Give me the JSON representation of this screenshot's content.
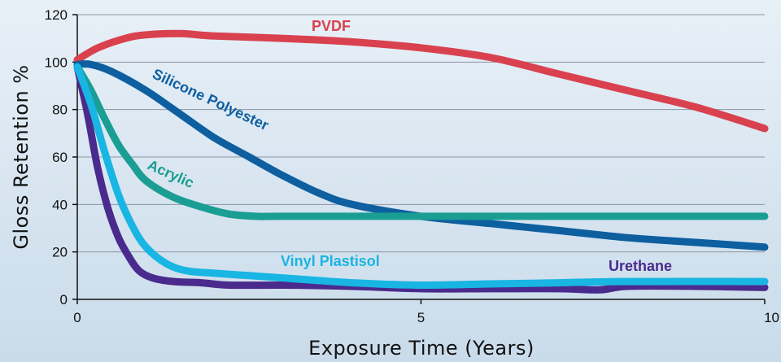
{
  "chart_data": {
    "type": "line",
    "xlabel": "Exposure Time (Years)",
    "ylabel": "Gloss Retention %",
    "xlim": [
      0,
      10
    ],
    "ylim": [
      0,
      120
    ],
    "xticks": [
      0,
      5,
      10
    ],
    "yticks": [
      0,
      20,
      40,
      60,
      80,
      100,
      120
    ],
    "grid": "horizontal",
    "series": [
      {
        "name": "PVDF",
        "color": "#d9414f",
        "x": [
          0,
          0.3,
          0.7,
          1.0,
          1.5,
          2.0,
          3.0,
          4.0,
          5.0,
          6.0,
          7.0,
          8.0,
          9.0,
          10.0
        ],
        "y": [
          101,
          106,
          110,
          111.5,
          112,
          111,
          110,
          108.5,
          106,
          102,
          95,
          88,
          81,
          72
        ]
      },
      {
        "name": "Silicone Polyester",
        "color": "#0d5fa0",
        "x": [
          0,
          0.2,
          0.5,
          1.0,
          1.5,
          2.0,
          2.5,
          3.0,
          3.5,
          4.0,
          5.0,
          6.0,
          7.0,
          8.0,
          9.0,
          10.0
        ],
        "y": [
          99,
          99,
          96,
          88,
          78,
          68,
          60,
          52,
          45,
          40,
          35,
          32,
          29,
          26,
          24,
          22
        ]
      },
      {
        "name": "Acrylic",
        "color": "#1a9e93",
        "x": [
          0,
          0.2,
          0.4,
          0.6,
          0.8,
          1.0,
          1.4,
          1.8,
          2.2,
          2.6,
          3.0,
          5.0,
          7.0,
          10.0
        ],
        "y": [
          98,
          88,
          76,
          65,
          57,
          50,
          43,
          39,
          36,
          35,
          35,
          35,
          35,
          35
        ]
      },
      {
        "name": "Vinyl Plastisol",
        "color": "#19b5e3",
        "x": [
          0,
          0.2,
          0.4,
          0.6,
          0.8,
          1.0,
          1.3,
          1.6,
          2.0,
          2.5,
          3.0,
          4.0,
          5.0,
          6.0,
          7.0,
          8.0,
          10.0
        ],
        "y": [
          98,
          82,
          62,
          44,
          31,
          22,
          15,
          12,
          11,
          10,
          9,
          7,
          6,
          6.5,
          7,
          7.5,
          7.5
        ]
      },
      {
        "name": "Urethane",
        "color": "#4a2a8c",
        "x": [
          0,
          0.15,
          0.3,
          0.45,
          0.6,
          0.75,
          0.9,
          1.1,
          1.4,
          1.8,
          2.2,
          3.0,
          4.0,
          5.0,
          6.0,
          7.0,
          7.6,
          8.0,
          9.0,
          10.0
        ],
        "y": [
          98,
          78,
          55,
          38,
          26,
          18,
          12,
          9,
          7.5,
          7,
          6,
          6,
          5.5,
          4.5,
          4.5,
          4.5,
          4,
          5.5,
          5.5,
          5
        ]
      }
    ],
    "annotations": [
      {
        "text": "PVDF",
        "color": "#d9414f"
      },
      {
        "text": "Silicone Polyester",
        "color": "#0d5fa0"
      },
      {
        "text": "Acrylic",
        "color": "#1a9e93"
      },
      {
        "text": "Vinyl Plastisol",
        "color": "#19b5e3"
      },
      {
        "text": "Urethane",
        "color": "#4a2a8c"
      }
    ]
  }
}
